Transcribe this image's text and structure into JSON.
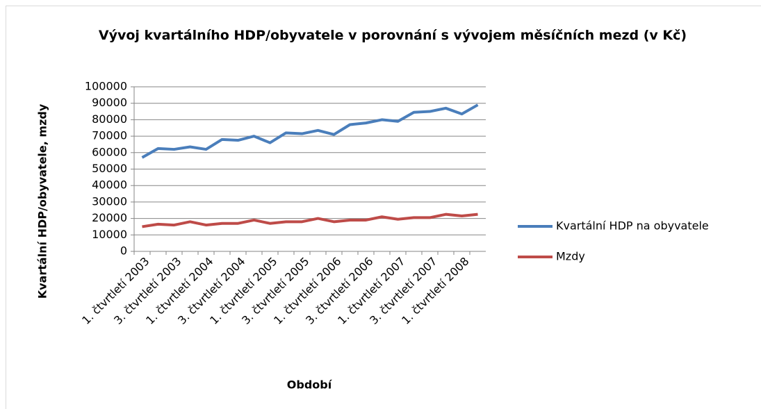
{
  "chart_data": {
    "type": "line",
    "title": "Vývoj kvartálního HDP/obyvatele  v porovnání s vývojem měsíčních mezd (v Kč)",
    "x_label": "Období",
    "y_label": "Kvartální HDP/obyvatele, mzdy",
    "categories": [
      "1. čtvrtletí 2003",
      null,
      "3. čtvrtletí 2003",
      null,
      "1. čtvrtletí 2004",
      null,
      "3. čtvrtletí 2004",
      null,
      "1. čtvrtletí 2005",
      null,
      "3. čtvrtletí 2005",
      null,
      "1. čtvrtletí 2006",
      null,
      "3. čtvrtletí 2006",
      null,
      "1. čtvrtletí 2007",
      null,
      "3. čtvrtletí 2007",
      null,
      "1. čtvrtletí 2008",
      null
    ],
    "series": [
      {
        "name": "Kvartální HDP na obyvatele",
        "color": "#4a7ebb",
        "values": [
          57000,
          62500,
          62000,
          63500,
          62000,
          68000,
          67500,
          70000,
          66000,
          72000,
          71500,
          73500,
          71000,
          77000,
          78000,
          80000,
          79000,
          84500,
          85000,
          87000,
          83500,
          89000
        ]
      },
      {
        "name": "Mzdy",
        "color": "#be4b48",
        "values": [
          15000,
          16500,
          16000,
          18000,
          16000,
          17000,
          17000,
          19000,
          17000,
          18000,
          18000,
          20000,
          18000,
          19000,
          19000,
          21000,
          19500,
          20500,
          20500,
          22500,
          21500,
          22500
        ]
      }
    ],
    "ylim": [
      0,
      100000
    ],
    "yticks": [
      0,
      10000,
      20000,
      30000,
      40000,
      50000,
      60000,
      70000,
      80000,
      90000,
      100000
    ],
    "grid": true,
    "legend": "right"
  }
}
